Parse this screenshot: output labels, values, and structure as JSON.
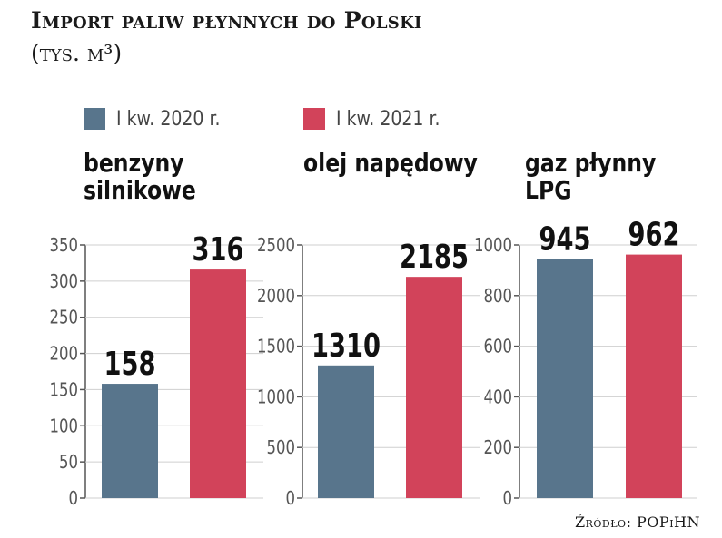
{
  "title": "Import paliw płynnych do Polski",
  "unit": "(tys. m³)",
  "source": "Źródło: POPiHN",
  "colors": {
    "series_2020": "#58758c",
    "series_2021": "#d2435a"
  },
  "chart_data": {
    "type": "bar",
    "legend": [
      "I kw. 2020 r.",
      "I kw. 2021 r."
    ],
    "legend_placement": "top",
    "panels": [
      {
        "title": "benzyny\nsilnikowe",
        "categories": [
          "I kw. 2020 r.",
          "I kw. 2021 r."
        ],
        "values": [
          158,
          316
        ],
        "ylim": [
          0,
          350
        ],
        "ticks": [
          0,
          50,
          100,
          150,
          200,
          250,
          300,
          350
        ]
      },
      {
        "title": "olej napędowy",
        "categories": [
          "I kw. 2020 r.",
          "I kw. 2021 r."
        ],
        "values": [
          1310,
          2185
        ],
        "ylim": [
          0,
          2500
        ],
        "ticks": [
          0,
          500,
          1000,
          1500,
          2000,
          2500
        ]
      },
      {
        "title": "gaz płynny\nLPG",
        "categories": [
          "I kw. 2020 r.",
          "I kw. 2021 r."
        ],
        "values": [
          945,
          962
        ],
        "ylim": [
          0,
          1000
        ],
        "ticks": [
          0,
          200,
          400,
          600,
          800,
          1000
        ]
      }
    ]
  }
}
